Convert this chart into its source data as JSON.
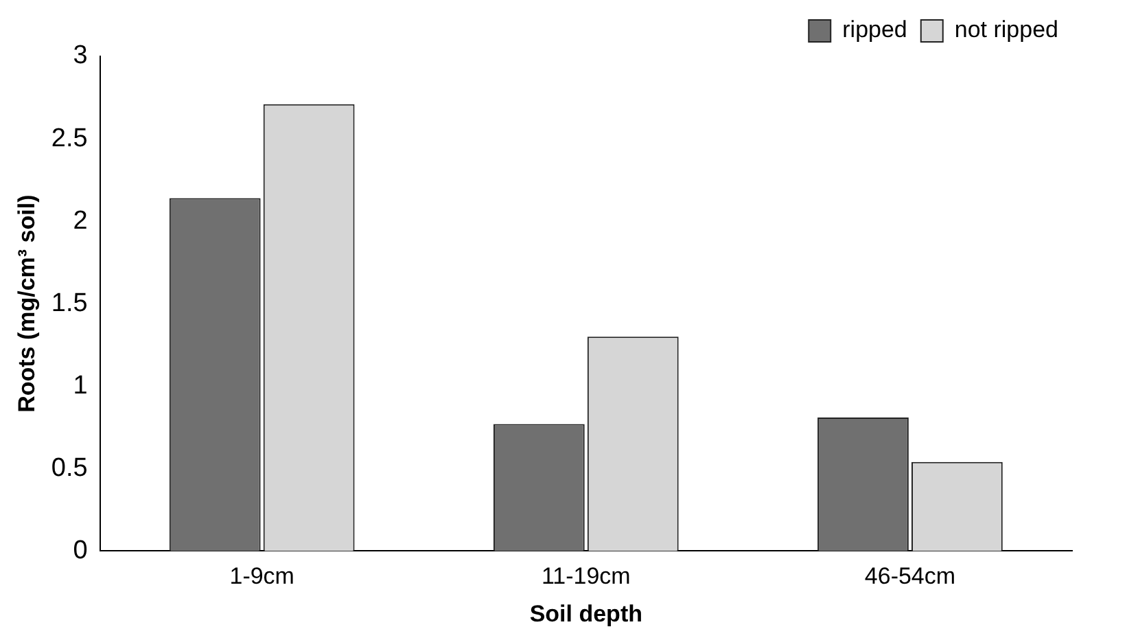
{
  "chart_data": {
    "type": "bar",
    "xlabel": "Soil depth",
    "ylabel": "Roots (mg/cm³ soil)",
    "categories": [
      "1-9cm",
      "11-19cm",
      "46-54cm"
    ],
    "series": [
      {
        "name": "ripped",
        "color": "#707070",
        "values": [
          2.14,
          0.77,
          0.81
        ]
      },
      {
        "name": "not ripped",
        "color": "#d6d6d6",
        "values": [
          2.71,
          1.3,
          0.54
        ]
      }
    ],
    "ylim": [
      0,
      3
    ],
    "yticks": [
      0,
      0.5,
      1,
      1.5,
      2,
      2.5,
      3
    ],
    "grid": false,
    "legend": "top right"
  }
}
